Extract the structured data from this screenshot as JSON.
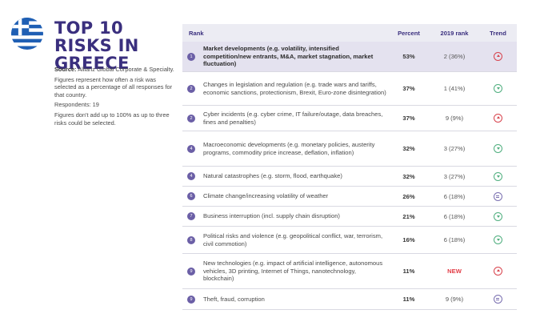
{
  "title": "TOP 10 RISKS IN GREECE",
  "notes": {
    "source_label": "Source:",
    "source_text": "Allianz Global Corporate & Specialty.",
    "desc": "Figures represent how often a risk was selected as a percentage of all responses for that country.",
    "respondents": "Respondents: 19",
    "footnote": "Figures don't add up to 100% as up to three risks could be selected."
  },
  "table": {
    "headers": {
      "rank": "Rank",
      "percent": "Percent",
      "prev": "2019 rank",
      "trend": "Trend"
    },
    "rows": [
      {
        "num": "1",
        "label": "Market developments (e.g. volatility, intensified competition/new entrants, M&A, market stagnation, market fluctuation)",
        "percent": "53%",
        "prev": "2 (36%)",
        "trend": "up"
      },
      {
        "num": "2",
        "label": "Changes in legislation and regulation (e.g. trade wars and tariffs, economic sanctions, protectionism, Brexit, Euro-zone disintegration)",
        "percent": "37%",
        "prev": "1 (41%)",
        "trend": "down"
      },
      {
        "num": "2",
        "label": "Cyber incidents (e.g. cyber crime, IT failure/outage, data breaches, fines and penalties)",
        "percent": "37%",
        "prev": "9 (9%)",
        "trend": "up"
      },
      {
        "num": "4",
        "label": "Macroeconomic developments (e.g. monetary policies, austerity programs, commodity price increase, deflation, inflation)",
        "percent": "32%",
        "prev": "3 (27%)",
        "trend": "down"
      },
      {
        "num": "4",
        "label": "Natural catastrophes (e.g. storm, flood, earthquake)",
        "percent": "32%",
        "prev": "3 (27%)",
        "trend": "down"
      },
      {
        "num": "6",
        "label": "Climate change/increasing volatility of weather",
        "percent": "26%",
        "prev": "6 (18%)",
        "trend": "same"
      },
      {
        "num": "7",
        "label": "Business interruption (incl. supply chain disruption)",
        "percent": "21%",
        "prev": "6 (18%)",
        "trend": "down"
      },
      {
        "num": "8",
        "label": "Political risks and violence (e.g. geopolitical conflict, war, terrorism, civil commotion)",
        "percent": "16%",
        "prev": "6 (18%)",
        "trend": "down"
      },
      {
        "num": "9",
        "label": "New technologies (e.g. impact of artificial intelligence, autonomous vehicles, 3D printing, Internet of Things, nanotechnology, blockchain)",
        "percent": "11%",
        "prev": "NEW",
        "trend": "up"
      },
      {
        "num": "9",
        "label": "Theft, fraud, corruption",
        "percent": "11%",
        "prev": "9 (9%)",
        "trend": "same"
      }
    ]
  },
  "colors": {
    "title": "#3a2f7e",
    "up": "#d8434d",
    "down": "#4fae7e",
    "same": "#7a6fb0",
    "new": "#e23b45"
  }
}
